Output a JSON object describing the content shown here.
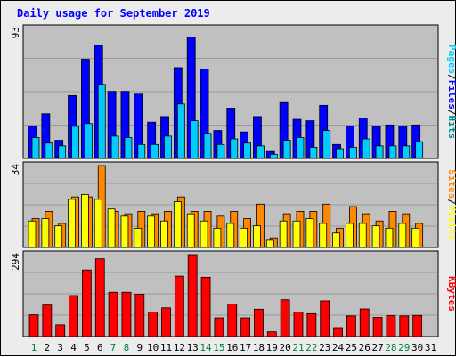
{
  "title": "Daily usage for September 2019",
  "colors": {
    "panel_bg": "#c0c0c0",
    "hits": "#00ccff",
    "files": "#0000ff",
    "pages": "#00ccff",
    "visits": "#ffff00",
    "sites": "#ff8800",
    "kbytes": "#ff0000",
    "weekend_label": "#008040",
    "weekday_label": "#000080"
  },
  "legends": {
    "top": [
      "Pages",
      "/",
      "Files",
      "/",
      "Hits"
    ],
    "middle": [
      "Sites",
      "/",
      "Visits"
    ],
    "bottom": [
      "KBytes"
    ]
  },
  "chart_data": [
    {
      "type": "bar",
      "panel": "top",
      "ymax_label": "93",
      "ylim": [
        0,
        93
      ],
      "grid": true,
      "categories": [
        "1",
        "2",
        "3",
        "4",
        "5",
        "6",
        "7",
        "8",
        "9",
        "10",
        "11",
        "12",
        "13",
        "14",
        "15",
        "16",
        "17",
        "18",
        "19",
        "20",
        "21",
        "22",
        "23",
        "24",
        "25",
        "26",
        "27",
        "28",
        "29",
        "30",
        "31"
      ],
      "series": [
        {
          "name": "Hits",
          "values": [
            23,
            32,
            13,
            45,
            71,
            81,
            48,
            48,
            46,
            26,
            30,
            65,
            87,
            64,
            20,
            36,
            19,
            30,
            5,
            40,
            28,
            27,
            38,
            10,
            23,
            29,
            23,
            24,
            23,
            24,
            0
          ]
        },
        {
          "name": "Files",
          "values": [
            15,
            11,
            9,
            23,
            25,
            53,
            16,
            15,
            10,
            10,
            16,
            39,
            27,
            18,
            10,
            14,
            11,
            9,
            3,
            13,
            15,
            8,
            20,
            7,
            8,
            14,
            9,
            9,
            9,
            12,
            0
          ]
        }
      ]
    },
    {
      "type": "bar",
      "panel": "middle",
      "ymax_label": "34",
      "ylim": [
        0,
        34
      ],
      "grid": true,
      "categories": [
        "1",
        "2",
        "3",
        "4",
        "5",
        "6",
        "7",
        "8",
        "9",
        "10",
        "11",
        "12",
        "13",
        "14",
        "15",
        "16",
        "17",
        "18",
        "19",
        "20",
        "21",
        "22",
        "23",
        "24",
        "25",
        "26",
        "27",
        "28",
        "29",
        "30",
        "31"
      ],
      "series": [
        {
          "name": "Visits",
          "values": [
            11,
            12,
            9,
            20,
            22,
            20,
            16,
            13,
            8,
            13,
            11,
            19,
            14,
            11,
            8,
            10,
            8,
            9,
            3,
            11,
            11,
            12,
            10,
            6,
            10,
            10,
            9,
            8,
            10,
            8,
            0
          ]
        },
        {
          "name": "Sites",
          "values": [
            12,
            15,
            10,
            21,
            21,
            34,
            15,
            14,
            15,
            14,
            15,
            21,
            15,
            15,
            13,
            15,
            12,
            18,
            4,
            14,
            15,
            15,
            18,
            8,
            17,
            14,
            11,
            15,
            14,
            10,
            0
          ]
        }
      ]
    },
    {
      "type": "bar",
      "panel": "bottom",
      "ymax_label": "294",
      "ylim": [
        0,
        294
      ],
      "grid": true,
      "categories": [
        "1",
        "2",
        "3",
        "4",
        "5",
        "6",
        "7",
        "8",
        "9",
        "10",
        "11",
        "12",
        "13",
        "14",
        "15",
        "16",
        "17",
        "18",
        "19",
        "20",
        "21",
        "22",
        "23",
        "24",
        "25",
        "26",
        "27",
        "28",
        "29",
        "30",
        "31"
      ],
      "series": [
        {
          "name": "KBytes",
          "values": [
            78,
            113,
            42,
            147,
            239,
            279,
            159,
            159,
            152,
            88,
            103,
            217,
            294,
            213,
            67,
            116,
            67,
            98,
            17,
            132,
            88,
            82,
            128,
            32,
            74,
            99,
            69,
            75,
            74,
            76,
            0
          ]
        }
      ]
    }
  ],
  "x_labels": {
    "days": [
      "1",
      "2",
      "3",
      "4",
      "5",
      "6",
      "7",
      "8",
      "9",
      "10",
      "11",
      "12",
      "13",
      "14",
      "15",
      "16",
      "17",
      "18",
      "19",
      "20",
      "21",
      "22",
      "23",
      "24",
      "25",
      "26",
      "27",
      "28",
      "29",
      "30",
      "31"
    ],
    "weekend_days": [
      1,
      7,
      8,
      14,
      15,
      21,
      22,
      28,
      29
    ]
  }
}
